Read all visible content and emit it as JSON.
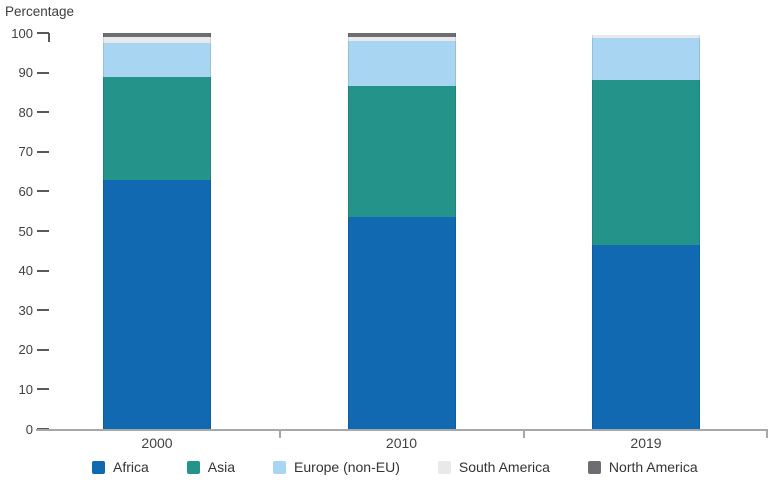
{
  "chart_data": {
    "type": "bar",
    "stacked": true,
    "title": "",
    "ylabel": "Percentage",
    "xlabel": "",
    "ylim": [
      0,
      100
    ],
    "ytick_step": 10,
    "ytick_labels": [
      "0",
      "10",
      "20",
      "30",
      "40",
      "50",
      "60",
      "70",
      "80",
      "90",
      "100"
    ],
    "grid": false,
    "legend_position": "bottom",
    "categories": [
      "2000",
      "2010",
      "2019"
    ],
    "series": [
      {
        "name": "Africa",
        "color": "#1169b2",
        "values": [
          63.0,
          53.5,
          46.5
        ]
      },
      {
        "name": "Asia",
        "color": "#24948a",
        "values": [
          26.0,
          33.0,
          41.5
        ]
      },
      {
        "name": "Europe (non-EU)",
        "color": "#a8d6f2",
        "values": [
          8.5,
          11.5,
          10.7
        ]
      },
      {
        "name": "South America",
        "color": "#e8e9ea",
        "values": [
          1.5,
          1.0,
          0.8
        ]
      },
      {
        "name": "North America",
        "color": "#6d6e71",
        "values": [
          1.0,
          1.0,
          0.1
        ]
      }
    ]
  }
}
